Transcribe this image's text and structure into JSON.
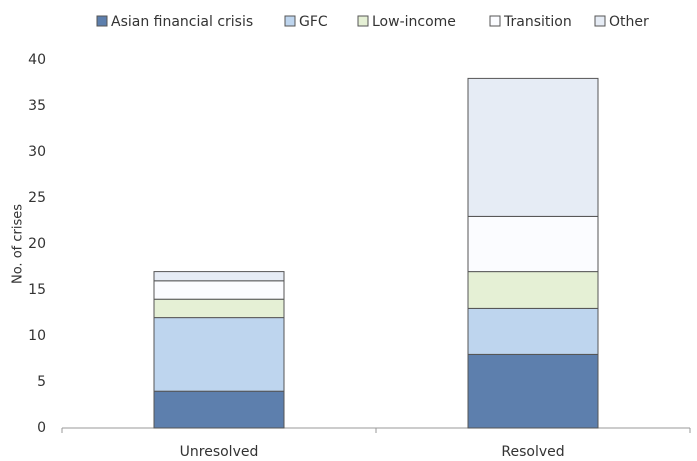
{
  "chart_data": {
    "type": "stacked_bar",
    "y_label": "No. of crises",
    "categories": [
      "Unresolved",
      "Resolved"
    ],
    "series": [
      {
        "name": "Asian financial crisis",
        "color": "#5d7fad",
        "values": [
          4,
          8
        ]
      },
      {
        "name": "GFC",
        "color": "#bed5ee",
        "values": [
          8,
          5
        ]
      },
      {
        "name": "Low-income",
        "color": "#e5f0d5",
        "values": [
          2,
          4
        ]
      },
      {
        "name": "Transition",
        "color": "#fbfcff",
        "values": [
          2,
          6
        ]
      },
      {
        "name": "Other",
        "color": "#e6ecf5",
        "values": [
          1,
          15
        ]
      }
    ],
    "ylim": [
      0,
      40
    ],
    "yticks": [
      0,
      5,
      10,
      15,
      20,
      25,
      30,
      35,
      40
    ]
  }
}
